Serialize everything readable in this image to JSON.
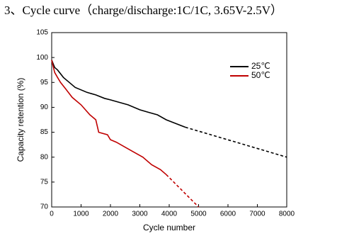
{
  "chart_data": {
    "type": "line",
    "title": "3、Cycle curve（charge/discharge:1C/1C, 3.65V-2.5V）",
    "x_label": "Cycle number",
    "y_label": "Capacity retention (%)",
    "xlim": [
      0,
      8000
    ],
    "xticks": [
      0,
      1000,
      2000,
      3000,
      4000,
      5000,
      6000,
      7000,
      8000
    ],
    "ylim": [
      70,
      105
    ],
    "yticks": [
      70,
      75,
      80,
      85,
      90,
      95,
      100,
      105
    ],
    "legend": "upper right",
    "series": [
      {
        "name": "25℃",
        "color": "#000000",
        "x": [
          0,
          100,
          200,
          400,
          600,
          800,
          1000,
          1200,
          1500,
          1800,
          2000,
          2300,
          2600,
          3000,
          3300,
          3600,
          3900,
          4200,
          4550
        ],
        "values": [
          99.5,
          98,
          97.5,
          96,
          95,
          94,
          93.5,
          93,
          92.5,
          91.8,
          91.5,
          91,
          90.5,
          89.5,
          89,
          88.5,
          87.5,
          86.8,
          86
        ],
        "projected_x": [
          4550,
          8000
        ],
        "projected_values": [
          86,
          80
        ]
      },
      {
        "name": "50℃",
        "color": "#c00000",
        "x": [
          0,
          100,
          200,
          300,
          500,
          700,
          1000,
          1300,
          1500,
          1580,
          1600,
          1900,
          2000,
          2200,
          2500,
          2800,
          3100,
          3400,
          3700,
          3900
        ],
        "values": [
          99.5,
          97,
          96,
          95,
          93.5,
          92,
          90.5,
          88.5,
          87.5,
          85.5,
          85,
          84.5,
          83.5,
          83,
          82,
          81,
          80,
          78.5,
          77.5,
          76.5
        ],
        "projected_x": [
          3900,
          5000
        ],
        "projected_values": [
          76.5,
          70
        ]
      }
    ]
  }
}
